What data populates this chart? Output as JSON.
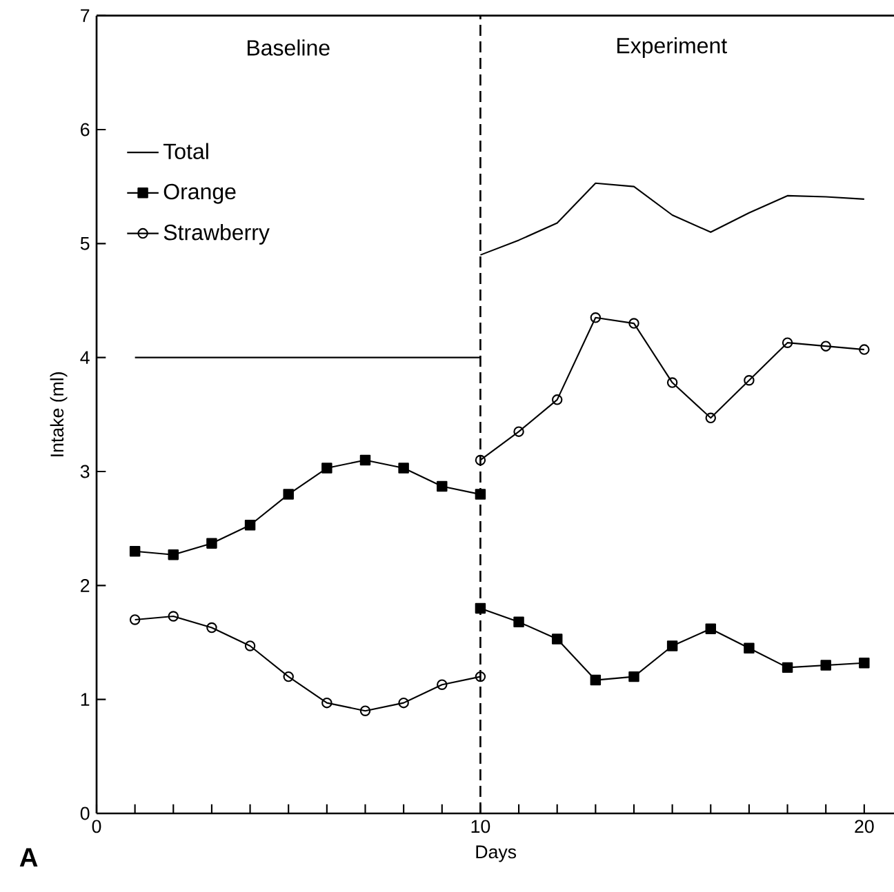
{
  "chart_data": {
    "type": "line",
    "xlabel": "Days",
    "ylabel": "Intake (ml)",
    "annotations": [
      "Baseline",
      "Experiment",
      "A"
    ],
    "xlim": [
      0,
      20.8
    ],
    "ylim": [
      0,
      7
    ],
    "xticks": [
      0,
      {
        "value": 1,
        "label": null
      },
      {
        "value": 2,
        "label": null
      },
      {
        "value": 3,
        "label": null
      },
      {
        "value": 4,
        "label": null
      },
      {
        "value": 5,
        "label": null
      },
      {
        "value": 6,
        "label": null
      },
      {
        "value": 7,
        "label": null
      },
      {
        "value": 8,
        "label": null
      },
      {
        "value": 9,
        "label": null
      },
      10,
      {
        "value": 11,
        "label": null
      },
      {
        "value": 12,
        "label": null
      },
      {
        "value": 13,
        "label": null
      },
      {
        "value": 14,
        "label": null
      },
      {
        "value": 15,
        "label": null
      },
      {
        "value": 16,
        "label": null
      },
      {
        "value": 17,
        "label": null
      },
      {
        "value": 18,
        "label": null
      },
      {
        "value": 19,
        "label": null
      },
      20
    ],
    "yticks": [
      0,
      1,
      2,
      3,
      4,
      5,
      6,
      7
    ],
    "legend": "top left",
    "ref_lines": [
      {
        "axis": "x",
        "value": 10,
        "line_style": "dashed",
        "color": "#000000"
      }
    ],
    "series": [
      {
        "name": "Total",
        "color": "#000000",
        "marker": "none",
        "x": [
          1,
          2,
          3,
          4,
          5,
          6,
          7,
          8,
          9,
          10
        ],
        "values": [
          4.0,
          4.0,
          4.0,
          4.0,
          4.0,
          4.0,
          4.0,
          4.0,
          4.0,
          4.0
        ]
      },
      {
        "name": "Orange",
        "color": "#000000",
        "marker": "square",
        "x": [
          1,
          2,
          3,
          4,
          5,
          6,
          7,
          8,
          9,
          10
        ],
        "values": [
          2.3,
          2.27,
          2.37,
          2.53,
          2.8,
          3.03,
          3.1,
          3.03,
          2.87,
          2.8
        ]
      },
      {
        "name": "Strawberry",
        "color": "#000000",
        "marker": "circle",
        "x": [
          1,
          2,
          3,
          4,
          5,
          6,
          7,
          8,
          9,
          10
        ],
        "values": [
          1.7,
          1.73,
          1.63,
          1.47,
          1.2,
          0.97,
          0.9,
          0.97,
          1.13,
          1.2
        ]
      },
      {
        "color": "#000000",
        "marker": "none",
        "x": [
          10,
          11,
          12,
          13,
          14,
          15,
          16,
          17,
          18,
          19,
          20
        ],
        "values": [
          4.9,
          5.03,
          5.18,
          5.53,
          5.5,
          5.25,
          5.1,
          5.27,
          5.42,
          5.41,
          5.39
        ]
      },
      {
        "color": "#000000",
        "marker": "square",
        "x": [
          10,
          11,
          12,
          13,
          14,
          15,
          16,
          17,
          18,
          19,
          20
        ],
        "values": [
          1.8,
          1.68,
          1.53,
          1.17,
          1.2,
          1.47,
          1.62,
          1.45,
          1.28,
          1.3,
          1.32
        ]
      },
      {
        "color": "#000000",
        "marker": "circle",
        "x": [
          10,
          11,
          12,
          13,
          14,
          15,
          16,
          17,
          18,
          19,
          20
        ],
        "values": [
          3.1,
          3.35,
          3.63,
          4.35,
          4.3,
          3.78,
          3.47,
          3.8,
          4.13,
          4.1,
          4.07
        ]
      }
    ]
  }
}
